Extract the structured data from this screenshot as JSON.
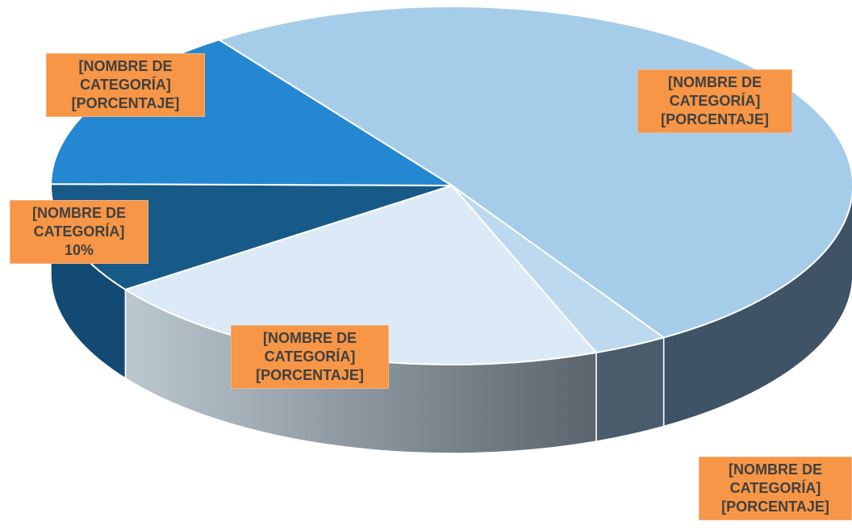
{
  "chart_data": {
    "type": "pie3d",
    "categories": [
      "[NOMBRE DE CATEGORÍA]",
      "[NOMBRE DE CATEGORÍA]",
      "[NOMBRE DE CATEGORÍA]",
      "[NOMBRE DE CATEGORÍA]",
      "[NOMBRE DE CATEGORÍA]"
    ],
    "values": [
      51,
      3,
      21,
      10,
      15
    ],
    "value_labels": [
      "[PORCENTAJE]",
      "[PORCENTAJE]",
      "[PORCENTAJE]",
      "10%",
      "[PORCENTAJE]"
    ],
    "colors": [
      "#a5cde9",
      "#bdd9ef",
      "#dbeaf6",
      "#175a87",
      "#2487d2"
    ],
    "side_colors": [
      "#3f5366",
      "#4a5c6c",
      "#8a949c",
      "#134a73",
      "#1d6aa5"
    ]
  }
}
